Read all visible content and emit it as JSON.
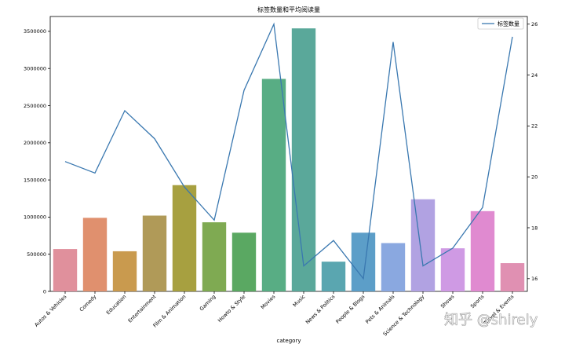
{
  "chart_data": {
    "type": "bar",
    "title": "标签数量和平均阅读量",
    "xlabel": "category",
    "categories": [
      "Autos & Vehicles",
      "Comedy",
      "Education",
      "Entertainment",
      "Film & Animation",
      "Gaming",
      "Howto & Style",
      "Movies",
      "Music",
      "News & Politics",
      "People & Blogs",
      "Pets & Animals",
      "Science & Technology",
      "Shows",
      "Sports",
      "Travel & Events"
    ],
    "bar_values": [
      570000,
      990000,
      540000,
      1020000,
      1430000,
      930000,
      790000,
      2860000,
      3540000,
      400000,
      790000,
      650000,
      1240000,
      580000,
      1080000,
      380000
    ],
    "bar_colors": [
      "#e0909c",
      "#e0906e",
      "#c99a4e",
      "#b09a58",
      "#a7a040",
      "#7faa52",
      "#5aa862",
      "#58ad84",
      "#5aa89a",
      "#5aa6b0",
      "#5c9ec8",
      "#8aa8e0",
      "#b1a2e2",
      "#cf9ae4",
      "#e08ad0",
      "#e090b2"
    ],
    "line_series": {
      "name": "标签数量",
      "values": [
        20.6,
        20.15,
        22.6,
        21.5,
        19.6,
        18.3,
        23.4,
        26.0,
        16.5,
        17.5,
        16.0,
        25.3,
        16.5,
        17.2,
        18.8,
        25.5
      ],
      "color": "#3a78b0"
    },
    "ylim_left": [
      0,
      3700000
    ],
    "yticks_left": [
      0,
      500000,
      1000000,
      1500000,
      2000000,
      2500000,
      3000000,
      3500000
    ],
    "ylim_right": [
      15.5,
      26.3
    ],
    "yticks_right": [
      16,
      18,
      20,
      22,
      24,
      26
    ],
    "legend_position": "top-right"
  },
  "watermark": "知乎 @shirely"
}
